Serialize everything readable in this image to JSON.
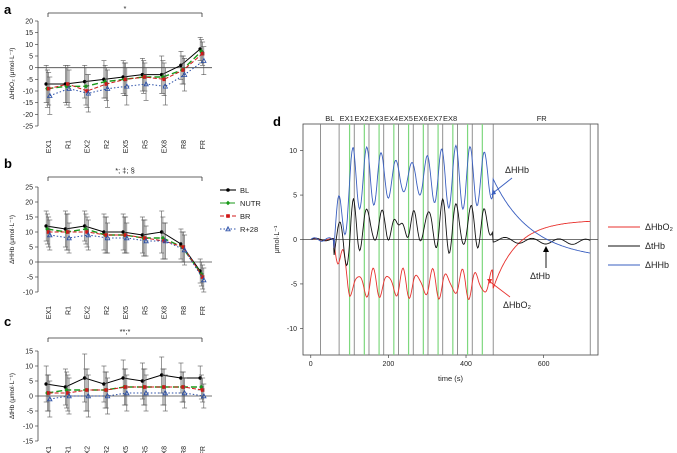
{
  "chart_data": [
    {
      "panel": "a",
      "type": "line",
      "ylabel": "ΔHbO₂ (μmol·L⁻¹)",
      "ylim": [
        -25,
        20
      ],
      "yticks": [
        -25,
        -20,
        -15,
        -10,
        -5,
        0,
        5,
        10,
        15,
        20
      ],
      "categories": [
        "EX1",
        "R1",
        "EX2",
        "R2",
        "EX5",
        "R5",
        "EX8",
        "R8",
        "FR"
      ],
      "significance": "*",
      "series": [
        {
          "name": "BL",
          "values": [
            -7,
            -7,
            -6,
            -5,
            -4,
            -3,
            -3,
            1,
            8
          ],
          "err": [
            8,
            8,
            7,
            8,
            7,
            7,
            8,
            6,
            5
          ]
        },
        {
          "name": "NUTR",
          "values": [
            -9,
            -8,
            -8,
            -6,
            -5,
            -4,
            -4,
            -1,
            7
          ],
          "err": [
            8,
            8,
            8,
            7,
            7,
            7,
            7,
            6,
            5
          ]
        },
        {
          "name": "BR",
          "values": [
            -9,
            -7,
            -10,
            -7,
            -5,
            -4,
            -5,
            -1,
            6
          ],
          "err": [
            7,
            8,
            7,
            7,
            7,
            6,
            7,
            6,
            5
          ]
        },
        {
          "name": "R+28",
          "values": [
            -12,
            -9,
            -11,
            -9,
            -8,
            -7,
            -8,
            -3,
            3
          ],
          "err": [
            8,
            8,
            8,
            8,
            8,
            7,
            8,
            7,
            6
          ]
        }
      ]
    },
    {
      "panel": "b",
      "type": "line",
      "ylabel": "ΔHHb (μmol·L⁻¹)",
      "ylim": [
        -10,
        25
      ],
      "yticks": [
        -10,
        -5,
        0,
        5,
        10,
        15,
        20,
        25
      ],
      "categories": [
        "EX1",
        "R1",
        "EX2",
        "R2",
        "EX5",
        "R5",
        "EX8",
        "R8",
        "FR"
      ],
      "significance": "*; ‡; §",
      "legend": [
        "BL",
        "NUTR",
        "BR",
        "R+28"
      ],
      "series": [
        {
          "name": "BL",
          "values": [
            12,
            11,
            12,
            10,
            10,
            9,
            10,
            6,
            -3
          ],
          "err": [
            5,
            6,
            5,
            6,
            6,
            6,
            7,
            5,
            4
          ]
        },
        {
          "name": "NUTR",
          "values": [
            11,
            10,
            11,
            9,
            9,
            8,
            8,
            5,
            -4
          ],
          "err": [
            5,
            6,
            5,
            6,
            6,
            6,
            7,
            5,
            4
          ]
        },
        {
          "name": "BR",
          "values": [
            10,
            10,
            10,
            9,
            9,
            8,
            7,
            5,
            -5
          ],
          "err": [
            5,
            6,
            5,
            6,
            6,
            6,
            6,
            5,
            4
          ]
        },
        {
          "name": "R+28",
          "values": [
            9,
            8,
            9,
            8,
            8,
            7,
            7,
            4,
            -6
          ],
          "err": [
            5,
            5,
            5,
            5,
            5,
            5,
            6,
            5,
            4
          ]
        }
      ]
    },
    {
      "panel": "c",
      "type": "line",
      "ylabel": "ΔtHb (μmol·L⁻¹)",
      "ylim": [
        -15,
        15
      ],
      "yticks": [
        -15,
        -10,
        -5,
        0,
        5,
        10,
        15
      ],
      "categories": [
        "EX1",
        "R1",
        "EX2",
        "R2",
        "EX5",
        "R5",
        "EX8",
        "R8",
        "FR"
      ],
      "significance": "**;*",
      "series": [
        {
          "name": "BL",
          "values": [
            4,
            3,
            6,
            4,
            6,
            5,
            7,
            6,
            6
          ],
          "err": [
            6,
            6,
            8,
            6,
            6,
            6,
            6,
            5,
            4
          ]
        },
        {
          "name": "NUTR",
          "values": [
            1,
            2,
            2,
            2,
            3,
            3,
            3,
            3,
            3
          ],
          "err": [
            6,
            6,
            7,
            6,
            6,
            6,
            6,
            5,
            4
          ]
        },
        {
          "name": "BR",
          "values": [
            1,
            1,
            2,
            2,
            3,
            3,
            3,
            3,
            2
          ],
          "err": [
            6,
            6,
            7,
            6,
            6,
            6,
            6,
            5,
            4
          ]
        },
        {
          "name": "R+28",
          "values": [
            -1,
            0,
            0,
            0,
            1,
            1,
            1,
            1,
            0
          ],
          "err": [
            6,
            6,
            7,
            6,
            6,
            6,
            6,
            5,
            4
          ]
        }
      ]
    },
    {
      "panel": "d",
      "type": "line",
      "xlabel": "time (s)",
      "ylabel": "μmol·L⁻¹",
      "xlim": [
        -20,
        740
      ],
      "ylim": [
        -13,
        13
      ],
      "xticks": [
        0,
        200,
        400,
        600
      ],
      "yticks": [
        -10,
        -5,
        0,
        5,
        10
      ],
      "phase_labels": [
        "BL",
        "EX1",
        "EX2",
        "EX3",
        "EX4",
        "EX5",
        "EX6",
        "EX7",
        "EX8",
        "FR"
      ],
      "phase_boundaries_s": [
        25,
        73,
        112,
        150,
        188,
        226,
        264,
        302,
        340,
        378,
        416,
        470,
        720
      ],
      "bout_lines_s": [
        100,
        138,
        176,
        214,
        252,
        290,
        328,
        366,
        404,
        442
      ],
      "annotations": [
        "ΔHHb",
        "ΔtHb",
        "ΔHbO₂"
      ],
      "legend": [
        "ΔHbO₂",
        "ΔtHb",
        "ΔHHb"
      ]
    }
  ],
  "labels": {
    "panel_a": "a",
    "panel_b": "b",
    "panel_c": "c",
    "panel_d": "d"
  },
  "colors": {
    "BL": "#000000",
    "NUTR": "#1a9a1a",
    "BR": "#d01818",
    "R+28": "#2a4fa8",
    "HbO2": "#e8322e",
    "tHb": "#111111",
    "HHb": "#3a5fc0",
    "bout": "#7ed87e"
  }
}
